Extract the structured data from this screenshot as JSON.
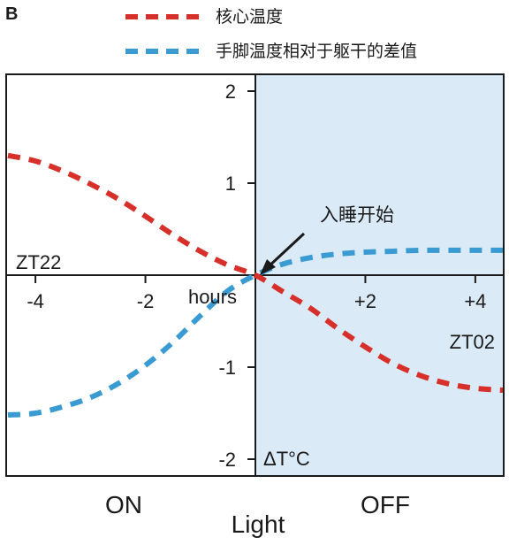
{
  "panel_label": "B",
  "chart_data": {
    "type": "line",
    "legend": {
      "placement": "top",
      "entries": [
        "核心温度",
        "手脚温度相对于躯干的差值"
      ]
    },
    "x": [
      -4.5,
      -4,
      -3.5,
      -3,
      -2.5,
      -2,
      -1.5,
      -1,
      -0.5,
      0,
      0.5,
      1,
      1.5,
      2,
      2.5,
      3,
      3.5,
      4,
      4.5
    ],
    "series": [
      {
        "name": "核心温度",
        "color": "#d7302b",
        "values": [
          1.3,
          1.24,
          1.13,
          0.99,
          0.83,
          0.64,
          0.44,
          0.26,
          0.11,
          0.0,
          -0.18,
          -0.36,
          -0.58,
          -0.78,
          -0.96,
          -1.09,
          -1.18,
          -1.23,
          -1.25
        ]
      },
      {
        "name": "手脚温度相对于躯干的差值",
        "color": "#3a9bd2",
        "values": [
          -1.52,
          -1.5,
          -1.43,
          -1.33,
          -1.18,
          -0.98,
          -0.73,
          -0.44,
          -0.17,
          0.0,
          0.12,
          0.19,
          0.23,
          0.25,
          0.26,
          0.27,
          0.27,
          0.27,
          0.27
        ]
      }
    ],
    "xlim": [
      -4.5,
      4.5
    ],
    "ylim": [
      -2.1,
      2.1
    ],
    "x_ticks": [
      -4,
      -2,
      2,
      4
    ],
    "x_tick_labels": [
      "-4",
      "-2",
      "+2",
      "+4"
    ],
    "y_ticks": [
      2,
      1,
      -1,
      -2
    ],
    "y_tick_labels": [
      "2",
      "1",
      "-1",
      "-2"
    ],
    "xlabel": "hours",
    "ylabel": "ΔT°C",
    "shaded_region": {
      "from": 0,
      "to": 4.5,
      "color": "#dbeaf7"
    },
    "annotations": {
      "arrow_label": "入睡开始",
      "left_label": "ZT22",
      "right_label": "ZT02",
      "light_on": "ON",
      "light_off": "OFF",
      "light_caption": "Light"
    }
  }
}
